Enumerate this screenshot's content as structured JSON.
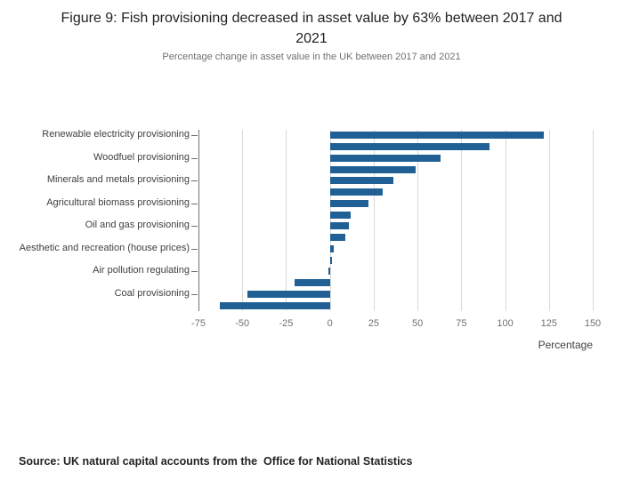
{
  "figure": {
    "title": "Figure 9: Fish provisioning decreased in asset value by 63% between 2017 and 2021",
    "subtitle": "Percentage change in asset value in the UK between 2017 and 2021",
    "source": "Source: UK natural capital accounts from the  Office for National Statistics"
  },
  "chart_data": {
    "type": "bar",
    "orientation": "horizontal",
    "title": "Figure 9: Fish provisioning decreased in asset value by 63% between 2017 and 2021",
    "subtitle": "Percentage change in asset value in the UK between 2017 and 2021",
    "xlabel": "Percentage",
    "xlim": [
      -75,
      150
    ],
    "xticks": [
      -75,
      -50,
      -25,
      0,
      25,
      50,
      75,
      100,
      125,
      150
    ],
    "grid": true,
    "bar_color": "#206095",
    "bars": [
      {
        "label": "Renewable electricity provisioning",
        "value": 122
      },
      {
        "label": "",
        "value": 91
      },
      {
        "label": "Woodfuel provisioning",
        "value": 63
      },
      {
        "label": "",
        "value": 49
      },
      {
        "label": "Minerals and metals provisioning",
        "value": 36
      },
      {
        "label": "",
        "value": 30
      },
      {
        "label": "Agricultural biomass provisioning",
        "value": 22
      },
      {
        "label": "",
        "value": 12
      },
      {
        "label": "Oil and gas provisioning",
        "value": 11
      },
      {
        "label": "",
        "value": 9
      },
      {
        "label": "Aesthetic and recreation (house prices)",
        "value": 2
      },
      {
        "label": "",
        "value": 1
      },
      {
        "label": "Air pollution regulating",
        "value": -1
      },
      {
        "label": "",
        "value": -20
      },
      {
        "label": "Coal provisioning",
        "value": -47
      },
      {
        "label": "",
        "value": -63
      }
    ]
  }
}
